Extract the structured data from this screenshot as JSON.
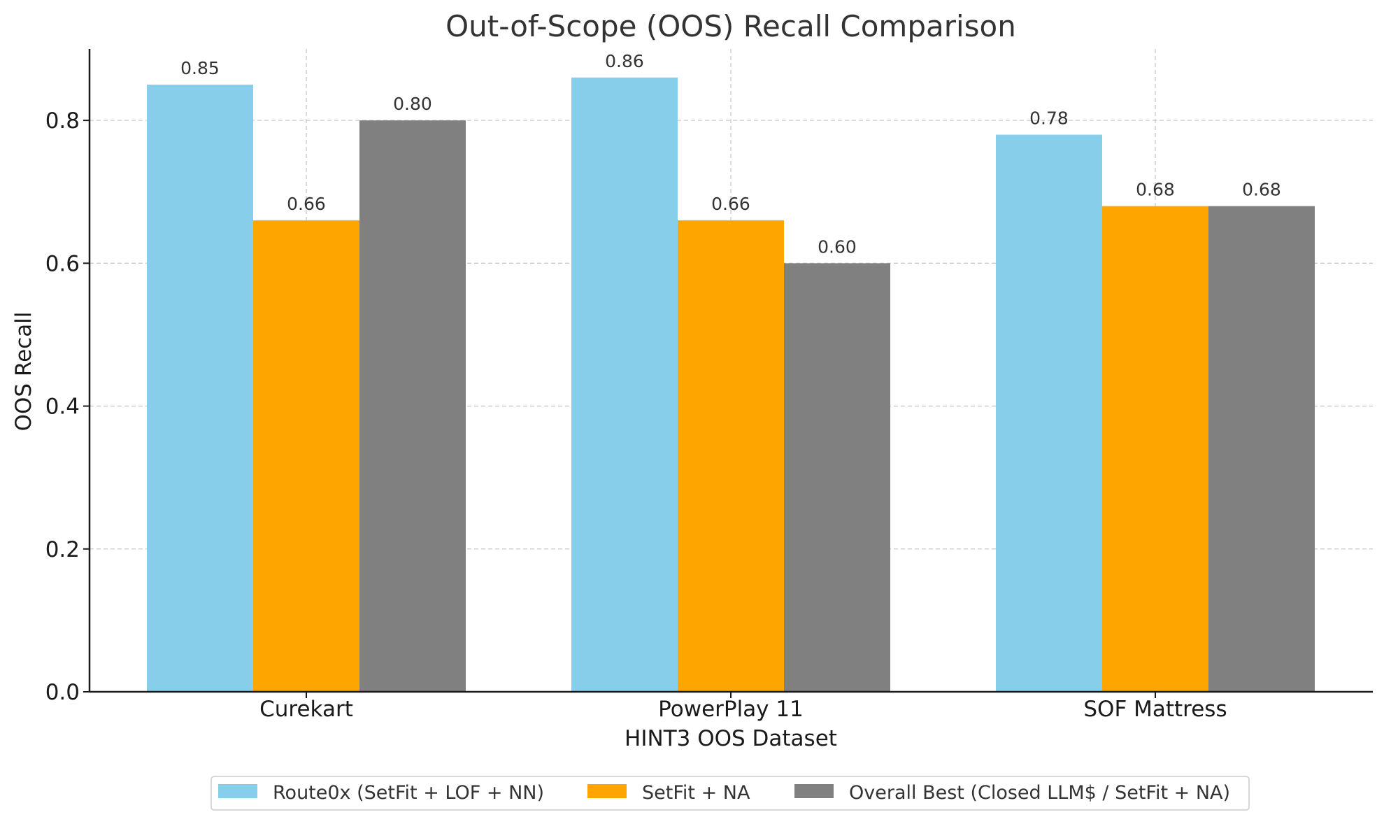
{
  "chart_data": {
    "type": "bar",
    "title": "Out-of-Scope (OOS) Recall Comparison",
    "xlabel": "HINT3 OOS Dataset",
    "ylabel": "OOS Recall",
    "categories": [
      "Curekart",
      "PowerPlay 11",
      "SOF Mattress"
    ],
    "series": [
      {
        "name": "Route0x (SetFit + LOF + NN)",
        "color": "#87CEEB",
        "values": [
          0.85,
          0.86,
          0.78
        ],
        "labels": [
          "0.85",
          "0.86",
          "0.78"
        ]
      },
      {
        "name": "SetFit + NA",
        "color": "#FFA500",
        "values": [
          0.66,
          0.66,
          0.68
        ],
        "labels": [
          "0.66",
          "0.66",
          "0.68"
        ]
      },
      {
        "name": "Overall Best (Closed LLM$ / SetFit + NA)",
        "color": "#808080",
        "values": [
          0.8,
          0.6,
          0.68
        ],
        "labels": [
          "0.80",
          "0.60",
          "0.68"
        ]
      }
    ],
    "ylim": [
      0,
      0.9
    ],
    "yticks": [
      0.0,
      0.2,
      0.4,
      0.6,
      0.8
    ],
    "ytick_labels": [
      "0.0",
      "0.2",
      "0.4",
      "0.6",
      "0.8"
    ],
    "grid": true,
    "legend_position": "bottom-center"
  }
}
